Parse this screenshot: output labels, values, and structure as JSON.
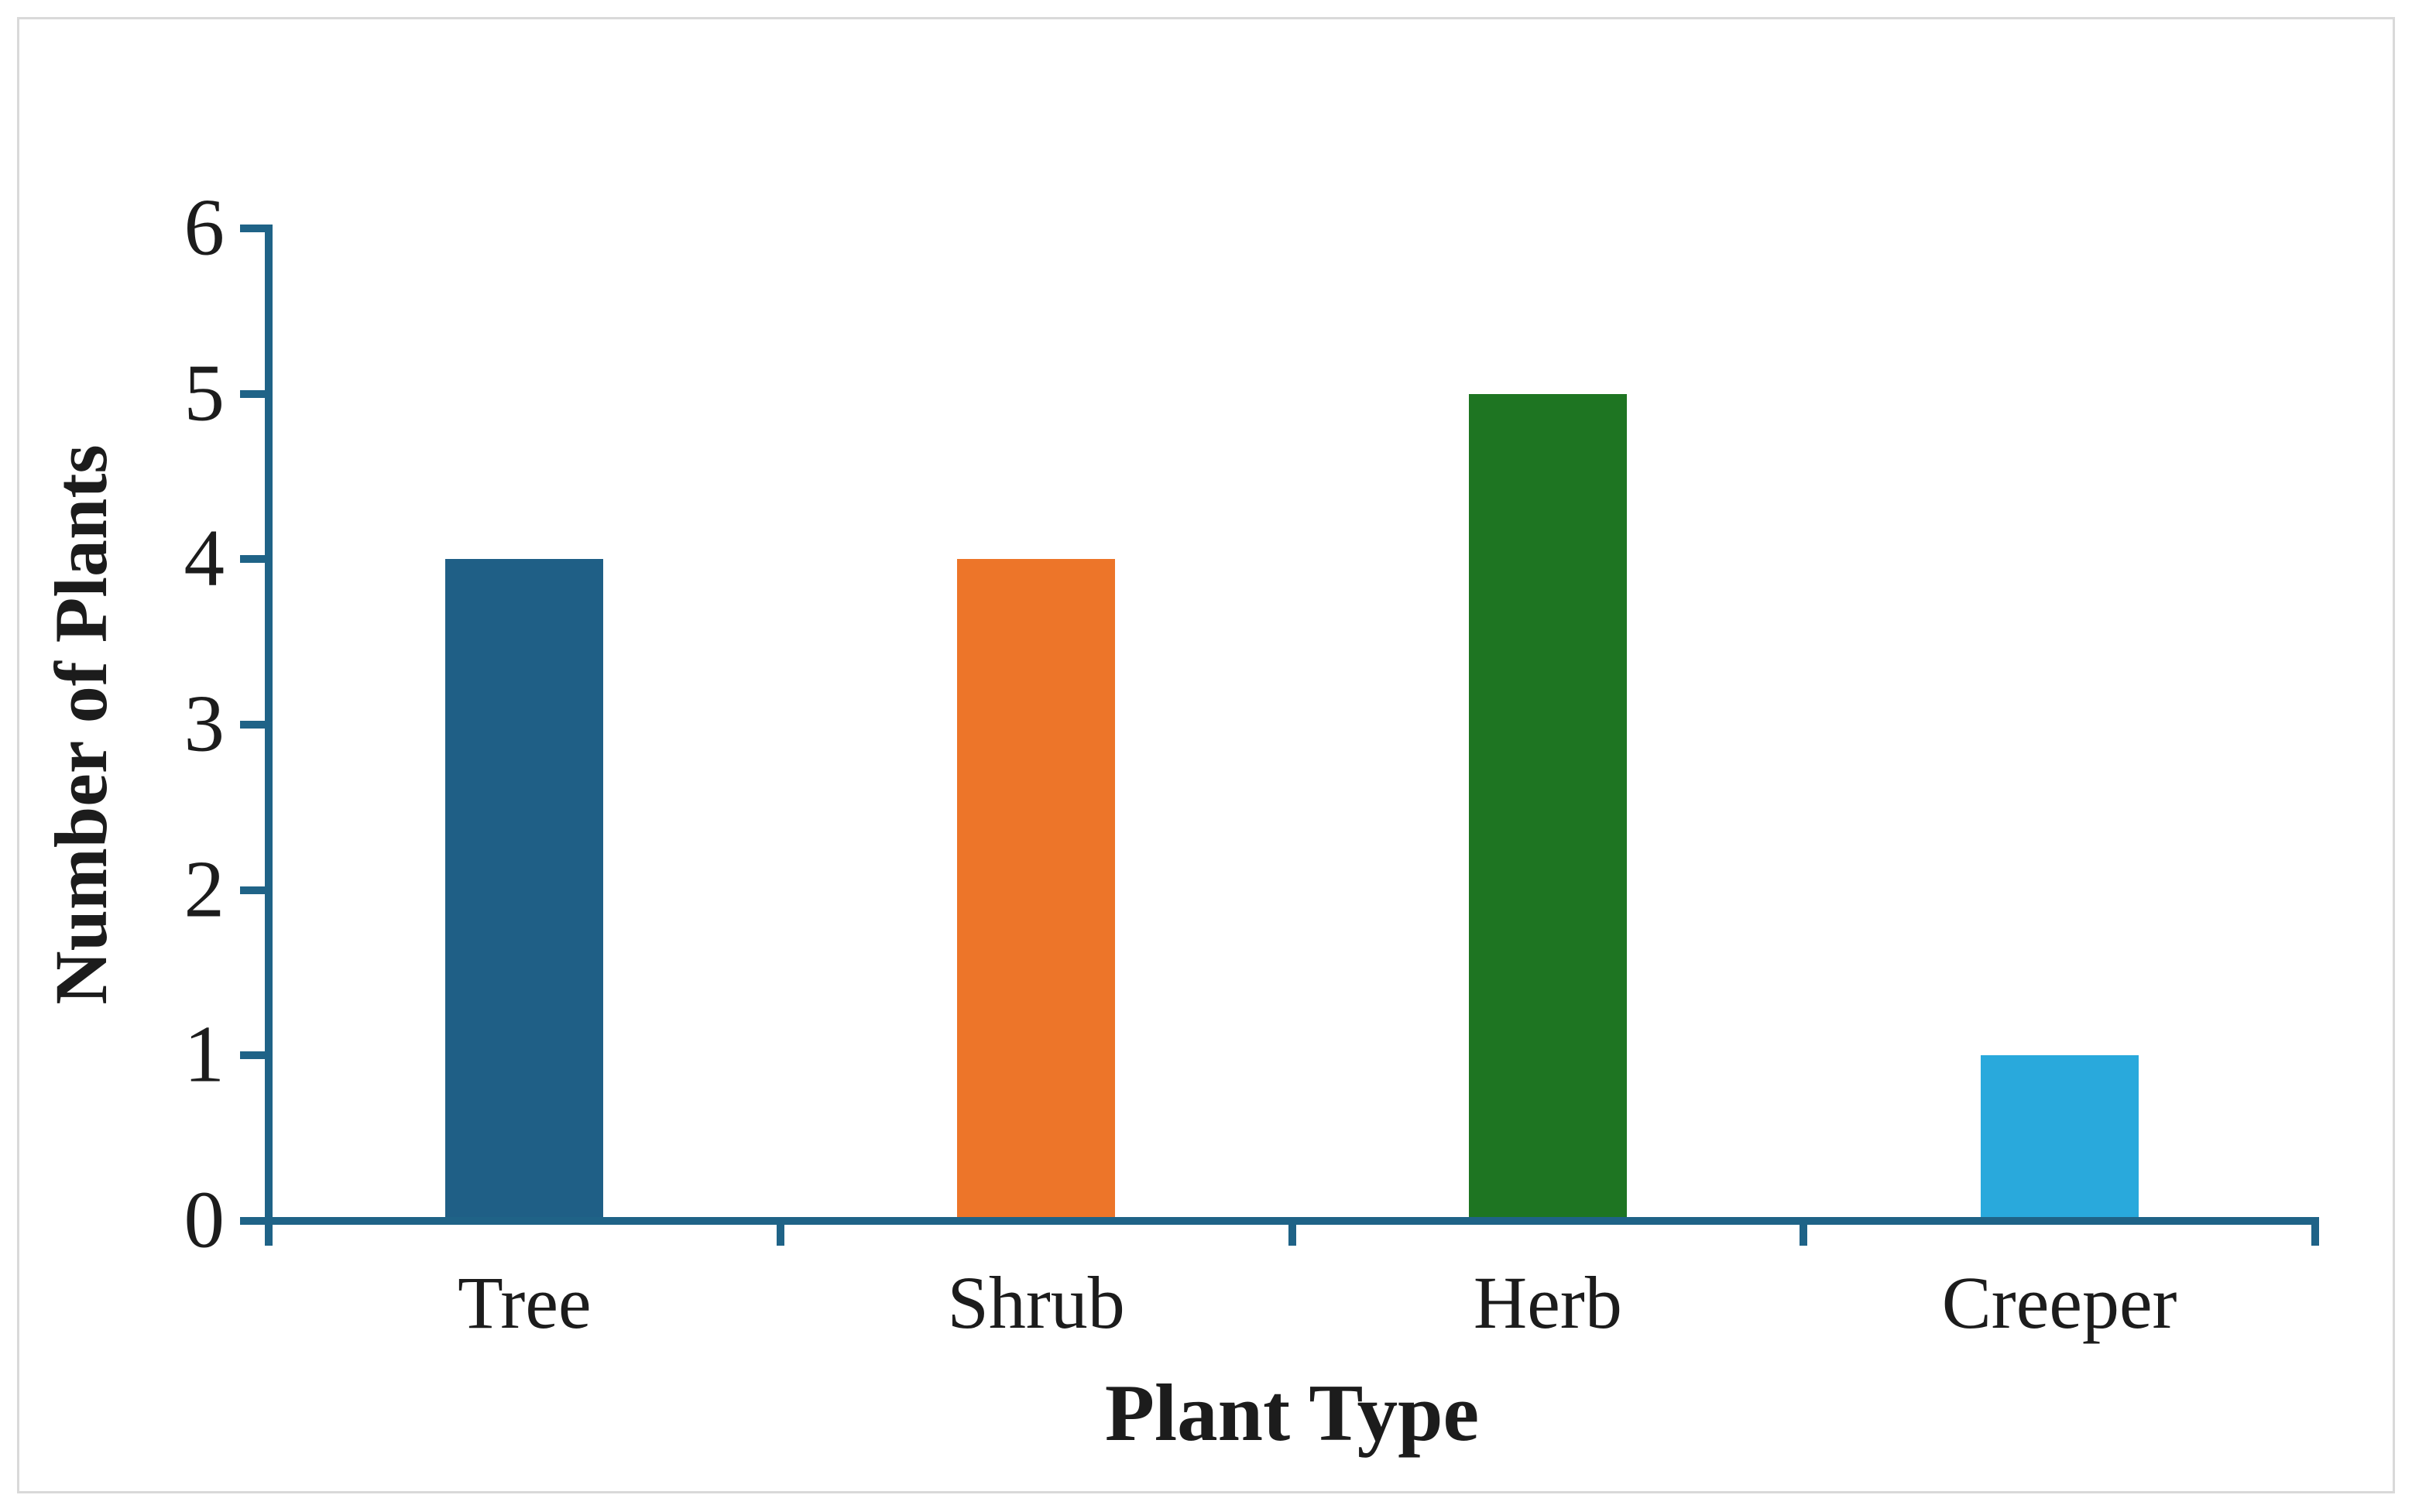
{
  "chart_data": {
    "type": "bar",
    "categories": [
      "Tree",
      "Shrub",
      "Herb",
      "Creeper"
    ],
    "values": [
      4,
      4,
      5,
      1
    ],
    "series": [
      {
        "name": "Number of Plants",
        "values": [
          4,
          4,
          5,
          1
        ]
      }
    ],
    "bar_colors": [
      "#1F5F86",
      "#ED7529",
      "#1E7522",
      "#29A9DC"
    ],
    "title": "",
    "xlabel": "Plant Type",
    "ylabel": "Number of Plants",
    "ylim": [
      0,
      6
    ],
    "yticks": [
      0,
      1,
      2,
      3,
      4,
      5,
      6
    ],
    "ytick_labels": [
      "0",
      "1",
      "2",
      "3",
      "4",
      "5",
      "6"
    ],
    "grid": false,
    "legend": null,
    "axis_color": "#1F6387",
    "text_color": "#1C1C1C",
    "frame_border_color": "#D9D9D9",
    "background_color": "#FFFFFF"
  }
}
